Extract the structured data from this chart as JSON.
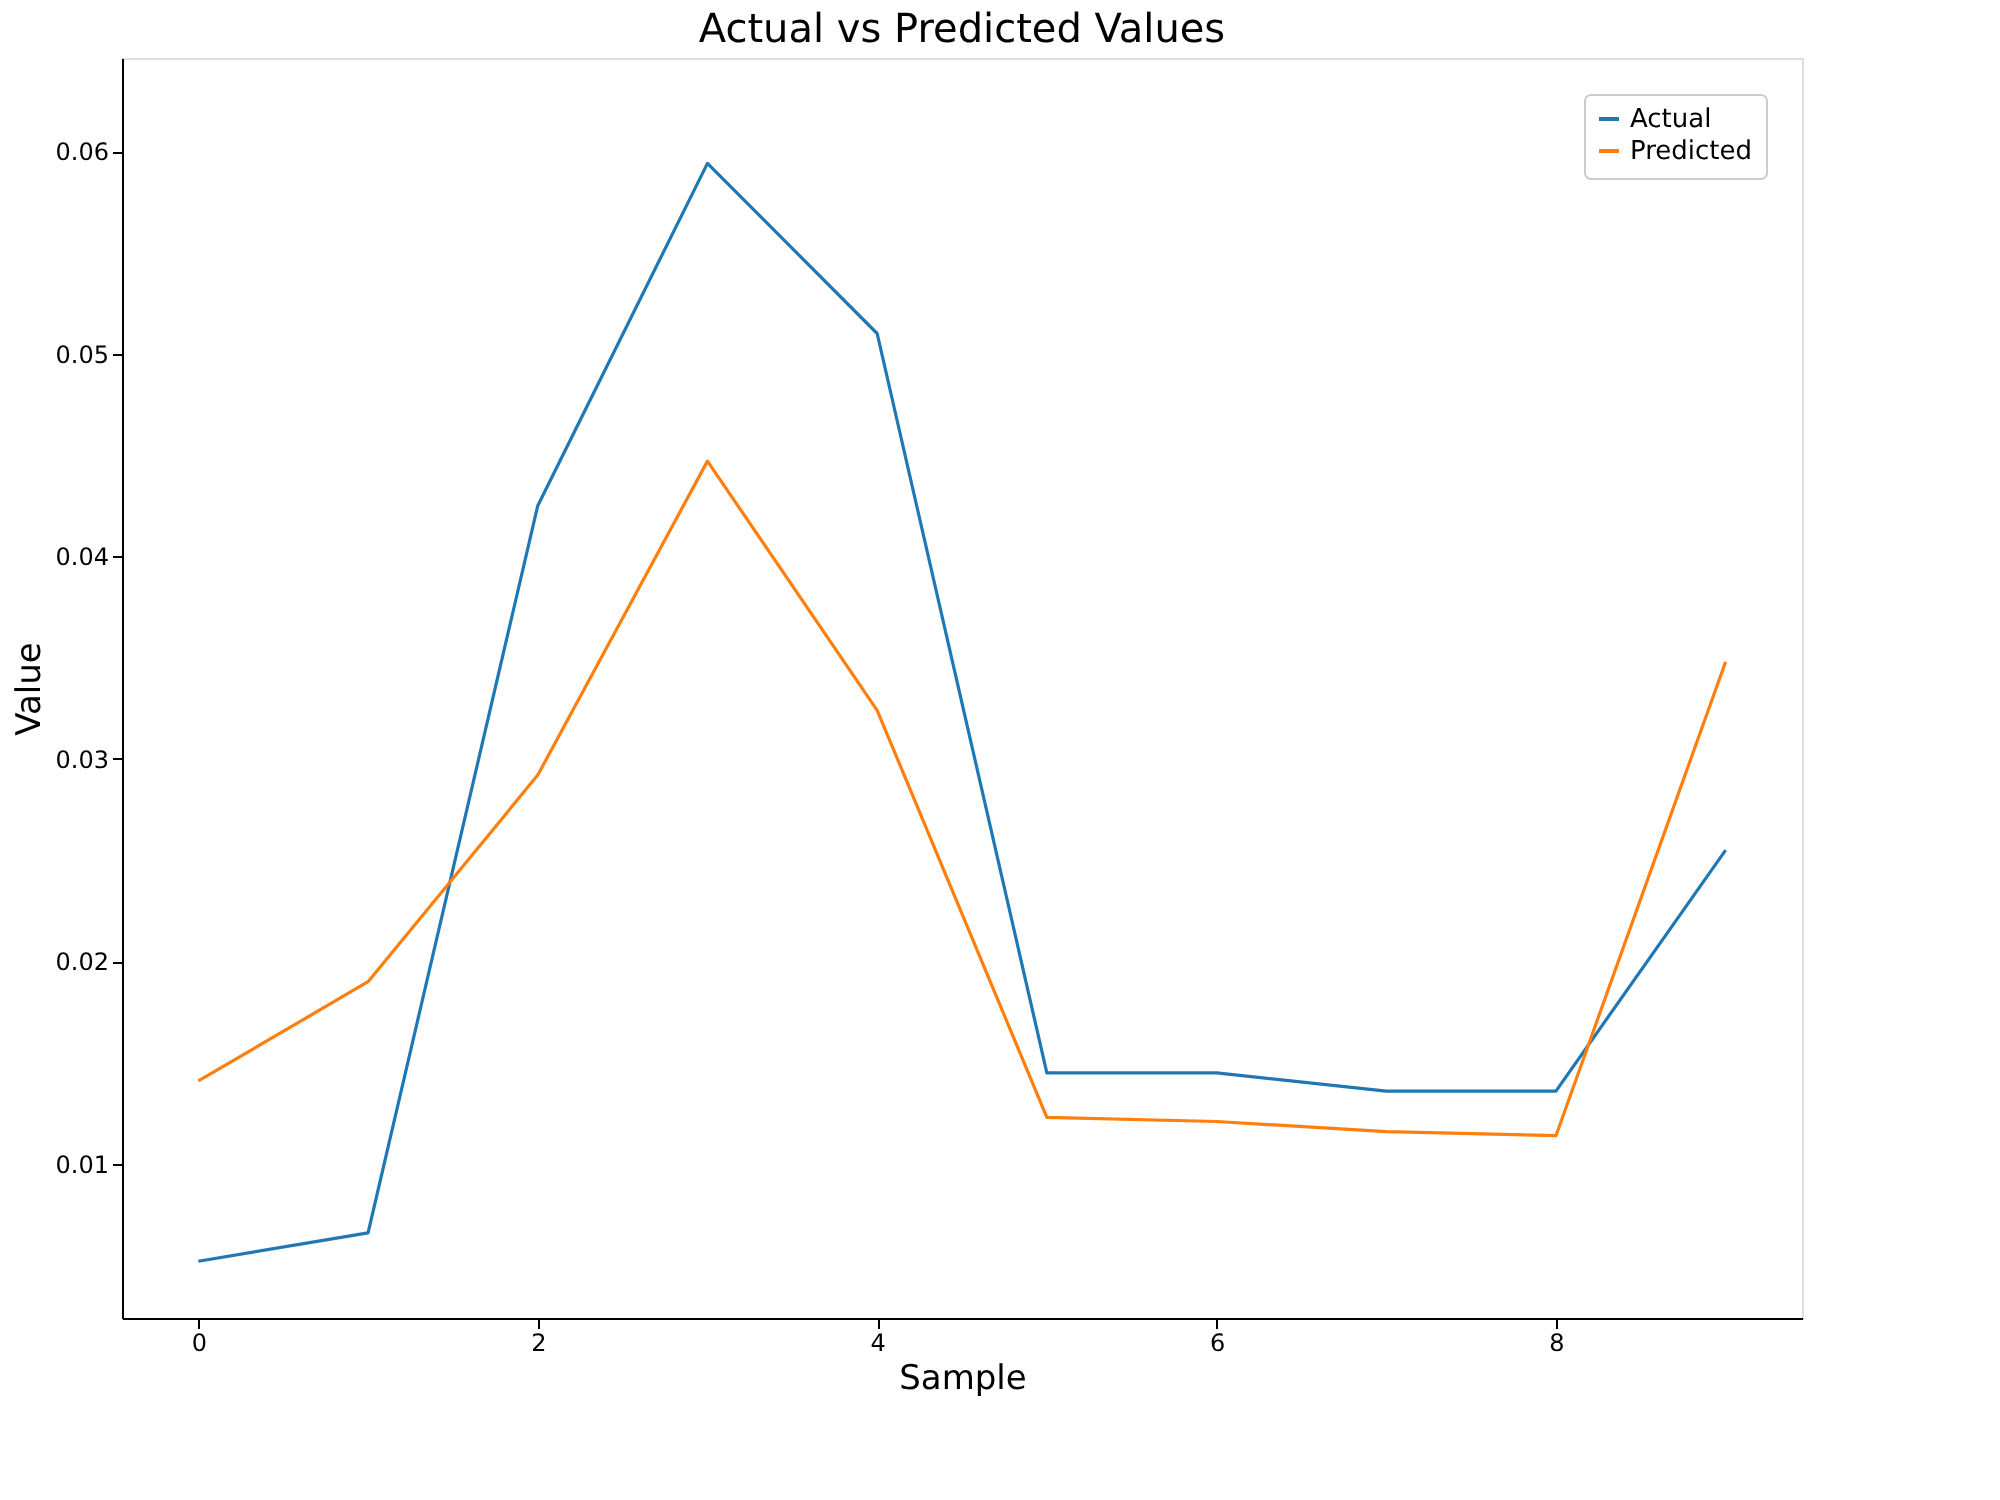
{
  "chart_data": {
    "type": "line",
    "title": "Actual vs Predicted Values",
    "xlabel": "Sample",
    "ylabel": "Value",
    "x": [
      0,
      1,
      2,
      3,
      4,
      5,
      6,
      7,
      8,
      9
    ],
    "series": [
      {
        "name": "Actual",
        "color": "#1f77b4",
        "values": [
          0.0052,
          0.0066,
          0.0425,
          0.0594,
          0.051,
          0.0145,
          0.0145,
          0.0136,
          0.0136,
          0.0255
        ]
      },
      {
        "name": "Predicted",
        "color": "#ff7f0e",
        "values": [
          0.0141,
          0.019,
          0.0292,
          0.0447,
          0.0324,
          0.0123,
          0.0121,
          0.0116,
          0.0114,
          0.0348
        ]
      }
    ],
    "xlim": [
      -0.45,
      9.45
    ],
    "ylim": [
      0.0024,
      0.0646
    ],
    "xticks": [
      0,
      2,
      4,
      6,
      8
    ],
    "yticks": [
      0.01,
      0.02,
      0.03,
      0.04,
      0.05,
      0.06
    ],
    "grid": false,
    "legend": "top right"
  }
}
